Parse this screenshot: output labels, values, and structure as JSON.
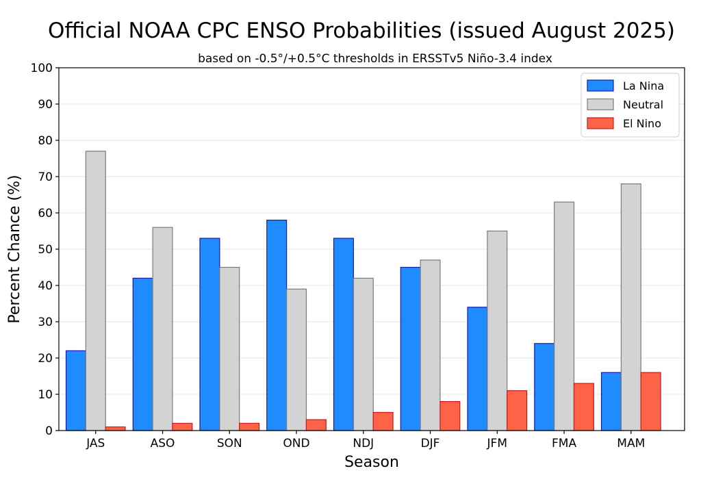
{
  "chart_data": {
    "type": "bar",
    "title": "Official NOAA CPC ENSO Probabilities (issued August 2025)",
    "subtitle": "based on -0.5°/+0.5°C thresholds in ERSSTv5 Niño-3.4 index",
    "xlabel": "Season",
    "ylabel": "Percent Chance (%)",
    "ylim": [
      0,
      100
    ],
    "yticks": [
      0,
      10,
      20,
      30,
      40,
      50,
      60,
      70,
      80,
      90,
      100
    ],
    "grid": "horizontal",
    "legend_position": "top-right",
    "categories": [
      "JAS",
      "ASO",
      "SON",
      "OND",
      "NDJ",
      "DJF",
      "JFM",
      "FMA",
      "MAM"
    ],
    "series": [
      {
        "name": "La Nina",
        "color": "#1e8cff",
        "edge_color": "#1a1aa8",
        "values": [
          22,
          42,
          53,
          58,
          53,
          45,
          34,
          24,
          16
        ]
      },
      {
        "name": "Neutral",
        "color": "#d3d3d3",
        "edge_color": "#7a7a7a",
        "values": [
          77,
          56,
          45,
          39,
          42,
          47,
          55,
          63,
          68
        ]
      },
      {
        "name": "El Nino",
        "color": "#ff6347",
        "edge_color": "#c41a1a",
        "values": [
          1,
          2,
          2,
          3,
          5,
          8,
          11,
          13,
          16
        ]
      }
    ]
  }
}
